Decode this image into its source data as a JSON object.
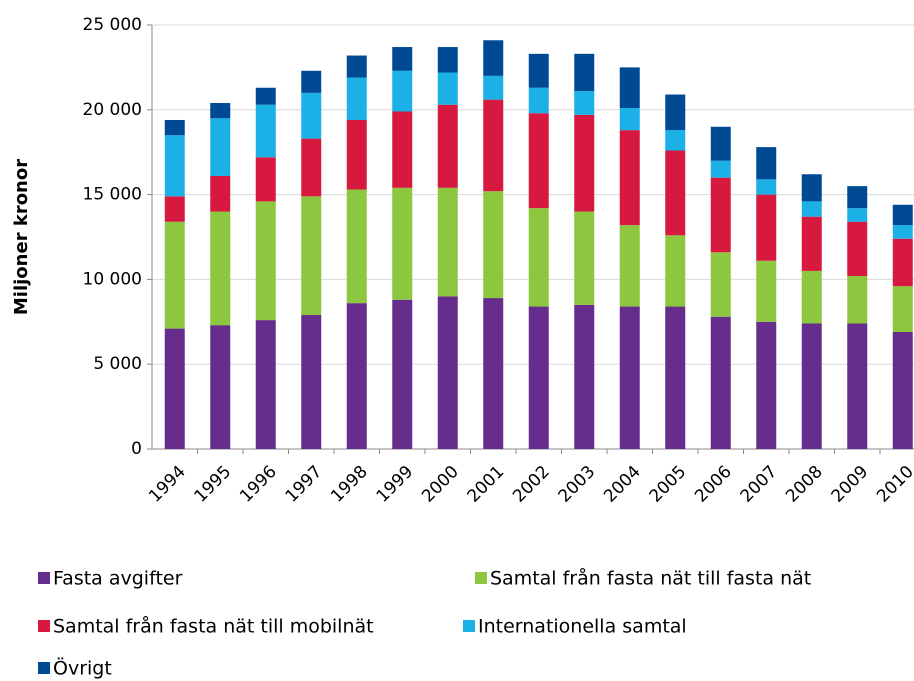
{
  "chart_data": {
    "type": "stacked_bar",
    "y_axis_label": "Miljoner kronor",
    "categories": [
      "1994",
      "1995",
      "1996",
      "1997",
      "1998",
      "1999",
      "2000",
      "2001",
      "2002",
      "2003",
      "2004",
      "2005",
      "2006",
      "2007",
      "2008",
      "2009",
      "2010"
    ],
    "series": [
      {
        "name": "Fasta avgifter",
        "color": "#662d8c",
        "values": [
          7100,
          7300,
          7600,
          7900,
          8600,
          8800,
          9000,
          8900,
          8400,
          8500,
          8400,
          8400,
          7800,
          7500,
          7400,
          7400,
          6900
        ]
      },
      {
        "name": "Samtal från fasta nät till fasta nät",
        "color": "#8dc63f",
        "values": [
          6300,
          6700,
          7000,
          7000,
          6700,
          6600,
          6400,
          6300,
          5800,
          5500,
          4800,
          4200,
          3800,
          3600,
          3100,
          2800,
          2700
        ]
      },
      {
        "name": "Samtal från fasta nät till mobilnät",
        "color": "#d7193f",
        "values": [
          1500,
          2100,
          2600,
          3400,
          4100,
          4500,
          4900,
          5400,
          5600,
          5700,
          5600,
          5000,
          4400,
          3900,
          3200,
          3200,
          2800
        ]
      },
      {
        "name": "Internationella samtal",
        "color": "#1cb1e6",
        "values": [
          3600,
          3400,
          3100,
          2700,
          2500,
          2400,
          1900,
          1400,
          1500,
          1400,
          1300,
          1200,
          1000,
          900,
          900,
          800,
          800
        ]
      },
      {
        "name": "Övrigt",
        "color": "#004a93",
        "values": [
          900,
          900,
          1000,
          1300,
          1300,
          1400,
          1500,
          2100,
          2000,
          2200,
          2400,
          2100,
          2000,
          1900,
          1600,
          1300,
          1200
        ]
      }
    ],
    "ylim": [
      0,
      25000
    ],
    "yticks": [
      0,
      {
        "value": 5000,
        "label": "5 000"
      },
      {
        "value": 10000,
        "label": "10 000"
      },
      {
        "value": 15000,
        "label": "15 000"
      },
      {
        "value": 20000,
        "label": "20 000"
      },
      {
        "value": 25000,
        "label": "25 000"
      }
    ],
    "grid": true,
    "legend": "bottom"
  }
}
